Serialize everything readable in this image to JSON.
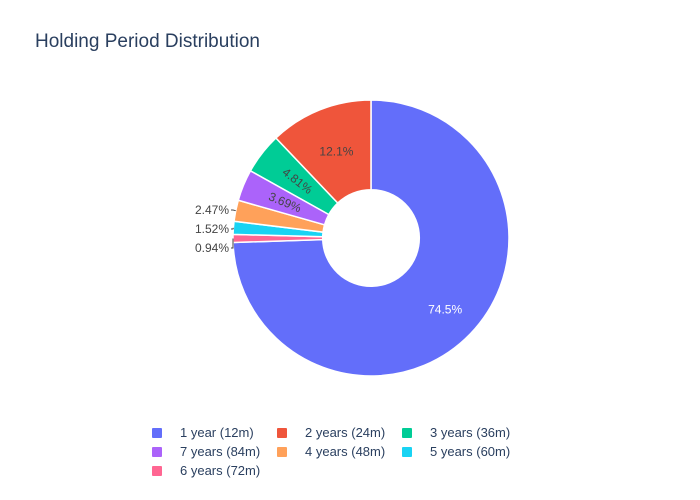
{
  "chart_data": {
    "type": "pie",
    "title": "Holding Period Distribution",
    "hole": 0.35,
    "slices": [
      {
        "label": "1 year (12m)",
        "value": 74.5,
        "text": "74.5%",
        "color": "#636efa"
      },
      {
        "label": "6 years (72m)",
        "value": 0.94,
        "text": "0.94%",
        "color": "#ff6692"
      },
      {
        "label": "5 years (60m)",
        "value": 1.52,
        "text": "1.52%",
        "color": "#19d3f3"
      },
      {
        "label": "4 years (48m)",
        "value": 2.47,
        "text": "2.47%",
        "color": "#ffa15a"
      },
      {
        "label": "7 years (84m)",
        "value": 3.69,
        "text": "3.69%",
        "color": "#ab63fa"
      },
      {
        "label": "3 years (36m)",
        "value": 4.81,
        "text": "4.81%",
        "color": "#00cc96"
      },
      {
        "label": "2 years (24m)",
        "value": 12.1,
        "text": "12.1%",
        "color": "#ef553b"
      }
    ],
    "legend": [
      {
        "label": "1 year (12m)",
        "color": "#636efa"
      },
      {
        "label": "2 years (24m)",
        "color": "#ef553b"
      },
      {
        "label": "3 years (36m)",
        "color": "#00cc96"
      },
      {
        "label": "7 years (84m)",
        "color": "#ab63fa"
      },
      {
        "label": "4 years (48m)",
        "color": "#ffa15a"
      },
      {
        "label": "5 years (60m)",
        "color": "#19d3f3"
      },
      {
        "label": "6 years (72m)",
        "color": "#ff6692"
      }
    ],
    "legend_position": "bottom"
  }
}
